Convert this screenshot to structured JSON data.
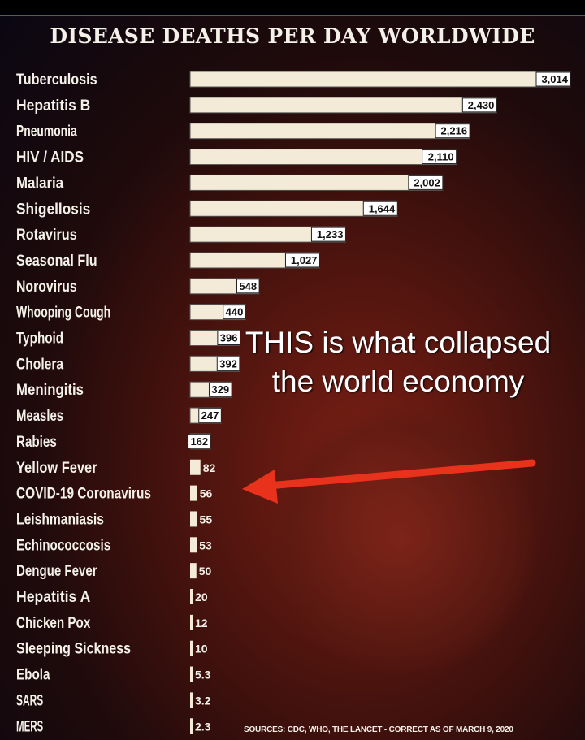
{
  "chart_data": {
    "type": "bar",
    "orientation": "horizontal",
    "title": "DISEASE DEATHS PER DAY WORLDWIDE",
    "categories": [
      "Tuberculosis",
      "Hepatitis B",
      "Pneumonia",
      "HIV / AIDS",
      "Malaria",
      "Shigellosis",
      "Rotavirus",
      "Seasonal Flu",
      "Norovirus",
      "Whooping Cough",
      "Typhoid",
      "Cholera",
      "Meningitis",
      "Measles",
      "Rabies",
      "Yellow Fever",
      "COVID-19 Coronavirus",
      "Leishmaniasis",
      "Echinococcosis",
      "Dengue Fever",
      "Hepatitis A",
      "Chicken Pox",
      "Sleeping Sickness",
      "Ebola",
      "SARS",
      "MERS"
    ],
    "values": [
      3014,
      2430,
      2216,
      2110,
      2002,
      1644,
      1233,
      1027,
      548,
      440,
      396,
      392,
      329,
      247,
      162,
      82,
      56,
      55,
      53,
      50,
      20,
      12,
      10,
      5.3,
      3.2,
      2.3
    ],
    "value_labels": [
      "3,014",
      "2,430",
      "2,216",
      "2,110",
      "2,002",
      "1,644",
      "1,233",
      "1,027",
      "548",
      "440",
      "396",
      "392",
      "329",
      "247",
      "162",
      "82",
      "56",
      "55",
      "53",
      "50",
      "20",
      "12",
      "10",
      "5.3",
      "3.2",
      "2.3"
    ],
    "xlim": [
      0,
      3014
    ],
    "bar_color": "#f3ead8",
    "grid": false
  },
  "annotation": {
    "text": "THIS is what collapsed the world economy",
    "arrow_color": "#e8321c",
    "points_to": "COVID-19 Coronavirus"
  },
  "sources": "SOURCES: CDC, WHO, THE LANCET - CORRECT AS OF MARCH 9, 2020"
}
